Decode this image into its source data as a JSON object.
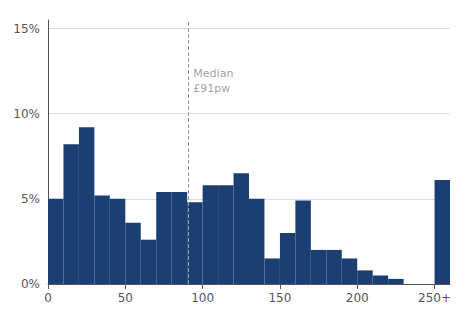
{
  "chart_data": {
    "type": "bar",
    "x": [
      0,
      10,
      20,
      30,
      40,
      50,
      60,
      70,
      80,
      90,
      100,
      110,
      120,
      130,
      140,
      150,
      160,
      170,
      180,
      190,
      200,
      210,
      220,
      250
    ],
    "widths": [
      10,
      10,
      10,
      10,
      10,
      10,
      10,
      10,
      10,
      10,
      10,
      10,
      10,
      10,
      10,
      10,
      10,
      10,
      10,
      10,
      10,
      10,
      10,
      10
    ],
    "values": [
      5.0,
      8.2,
      9.2,
      5.2,
      5.0,
      3.6,
      2.6,
      5.4,
      5.4,
      4.8,
      5.8,
      5.8,
      6.5,
      5.0,
      1.5,
      3.0,
      4.9,
      2.0,
      2.0,
      1.5,
      0.8,
      0.5,
      0.3,
      6.1
    ],
    "color": "#1b3f72",
    "xlim": [
      0,
      260
    ],
    "xticks": [
      0,
      50,
      100,
      150,
      200,
      {
        "value": 250,
        "label": "250+"
      }
    ],
    "ylim": [
      0,
      15.5
    ],
    "yticks": [
      {
        "value": 0,
        "label": "0%"
      },
      {
        "value": 5,
        "label": "5%"
      },
      {
        "value": 10,
        "label": "10%"
      },
      {
        "value": 15,
        "label": "15%"
      }
    ],
    "grid": true,
    "vlines": [
      {
        "x": 91,
        "color": "#999999",
        "line_style": "dashed"
      }
    ],
    "annotations": [
      {
        "text": "Median\n£91pw",
        "x": 94,
        "y": 12.8
      }
    ]
  }
}
